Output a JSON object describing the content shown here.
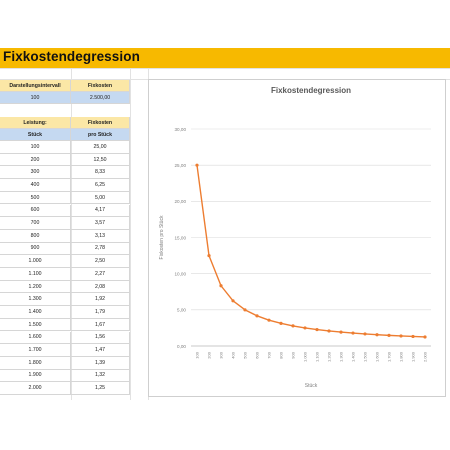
{
  "sheet": {
    "title": "Fixkostendegression",
    "header1": {
      "intervall_label": "Darstellungsintervall",
      "fixkosten_label": "Fixkosten"
    },
    "params": {
      "intervall": "100",
      "fixkosten": "2.500,00"
    },
    "header2": {
      "leistung_label": "Leistung:",
      "fixkosten_label": "Fixkosten",
      "stueck_label": "Stück",
      "pro_stueck_label": "pro Stück"
    },
    "rows": [
      {
        "stueck": "100",
        "kosten": "25,00"
      },
      {
        "stueck": "200",
        "kosten": "12,50"
      },
      {
        "stueck": "300",
        "kosten": "8,33"
      },
      {
        "stueck": "400",
        "kosten": "6,25"
      },
      {
        "stueck": "500",
        "kosten": "5,00"
      },
      {
        "stueck": "600",
        "kosten": "4,17"
      },
      {
        "stueck": "700",
        "kosten": "3,57"
      },
      {
        "stueck": "800",
        "kosten": "3,13"
      },
      {
        "stueck": "900",
        "kosten": "2,78"
      },
      {
        "stueck": "1.000",
        "kosten": "2,50"
      },
      {
        "stueck": "1.100",
        "kosten": "2,27"
      },
      {
        "stueck": "1.200",
        "kosten": "2,08"
      },
      {
        "stueck": "1.300",
        "kosten": "1,92"
      },
      {
        "stueck": "1.400",
        "kosten": "1,79"
      },
      {
        "stueck": "1.500",
        "kosten": "1,67"
      },
      {
        "stueck": "1.600",
        "kosten": "1,56"
      },
      {
        "stueck": "1.700",
        "kosten": "1,47"
      },
      {
        "stueck": "1.800",
        "kosten": "1,39"
      },
      {
        "stueck": "1.900",
        "kosten": "1,32"
      },
      {
        "stueck": "2.000",
        "kosten": "1,25"
      }
    ]
  },
  "chart_data": {
    "type": "line",
    "title": "Fixkostendegression",
    "xlabel": "Stück",
    "ylabel": "Fixkosten pro Stück",
    "categories": [
      "100",
      "200",
      "300",
      "400",
      "500",
      "600",
      "700",
      "800",
      "900",
      "1.000",
      "1.100",
      "1.200",
      "1.300",
      "1.400",
      "1.500",
      "1.600",
      "1.700",
      "1.800",
      "1.900",
      "2.000"
    ],
    "values": [
      25.0,
      12.5,
      8.33,
      6.25,
      5.0,
      4.17,
      3.57,
      3.13,
      2.78,
      2.5,
      2.27,
      2.08,
      1.92,
      1.79,
      1.67,
      1.56,
      1.47,
      1.39,
      1.32,
      1.25
    ],
    "ylim": [
      0,
      30
    ],
    "yticks": [
      "0,00",
      "5,00",
      "10,00",
      "15,00",
      "20,00",
      "25,00",
      "30,00"
    ],
    "grid": true,
    "legend": "none",
    "color": "#ed7d31"
  }
}
